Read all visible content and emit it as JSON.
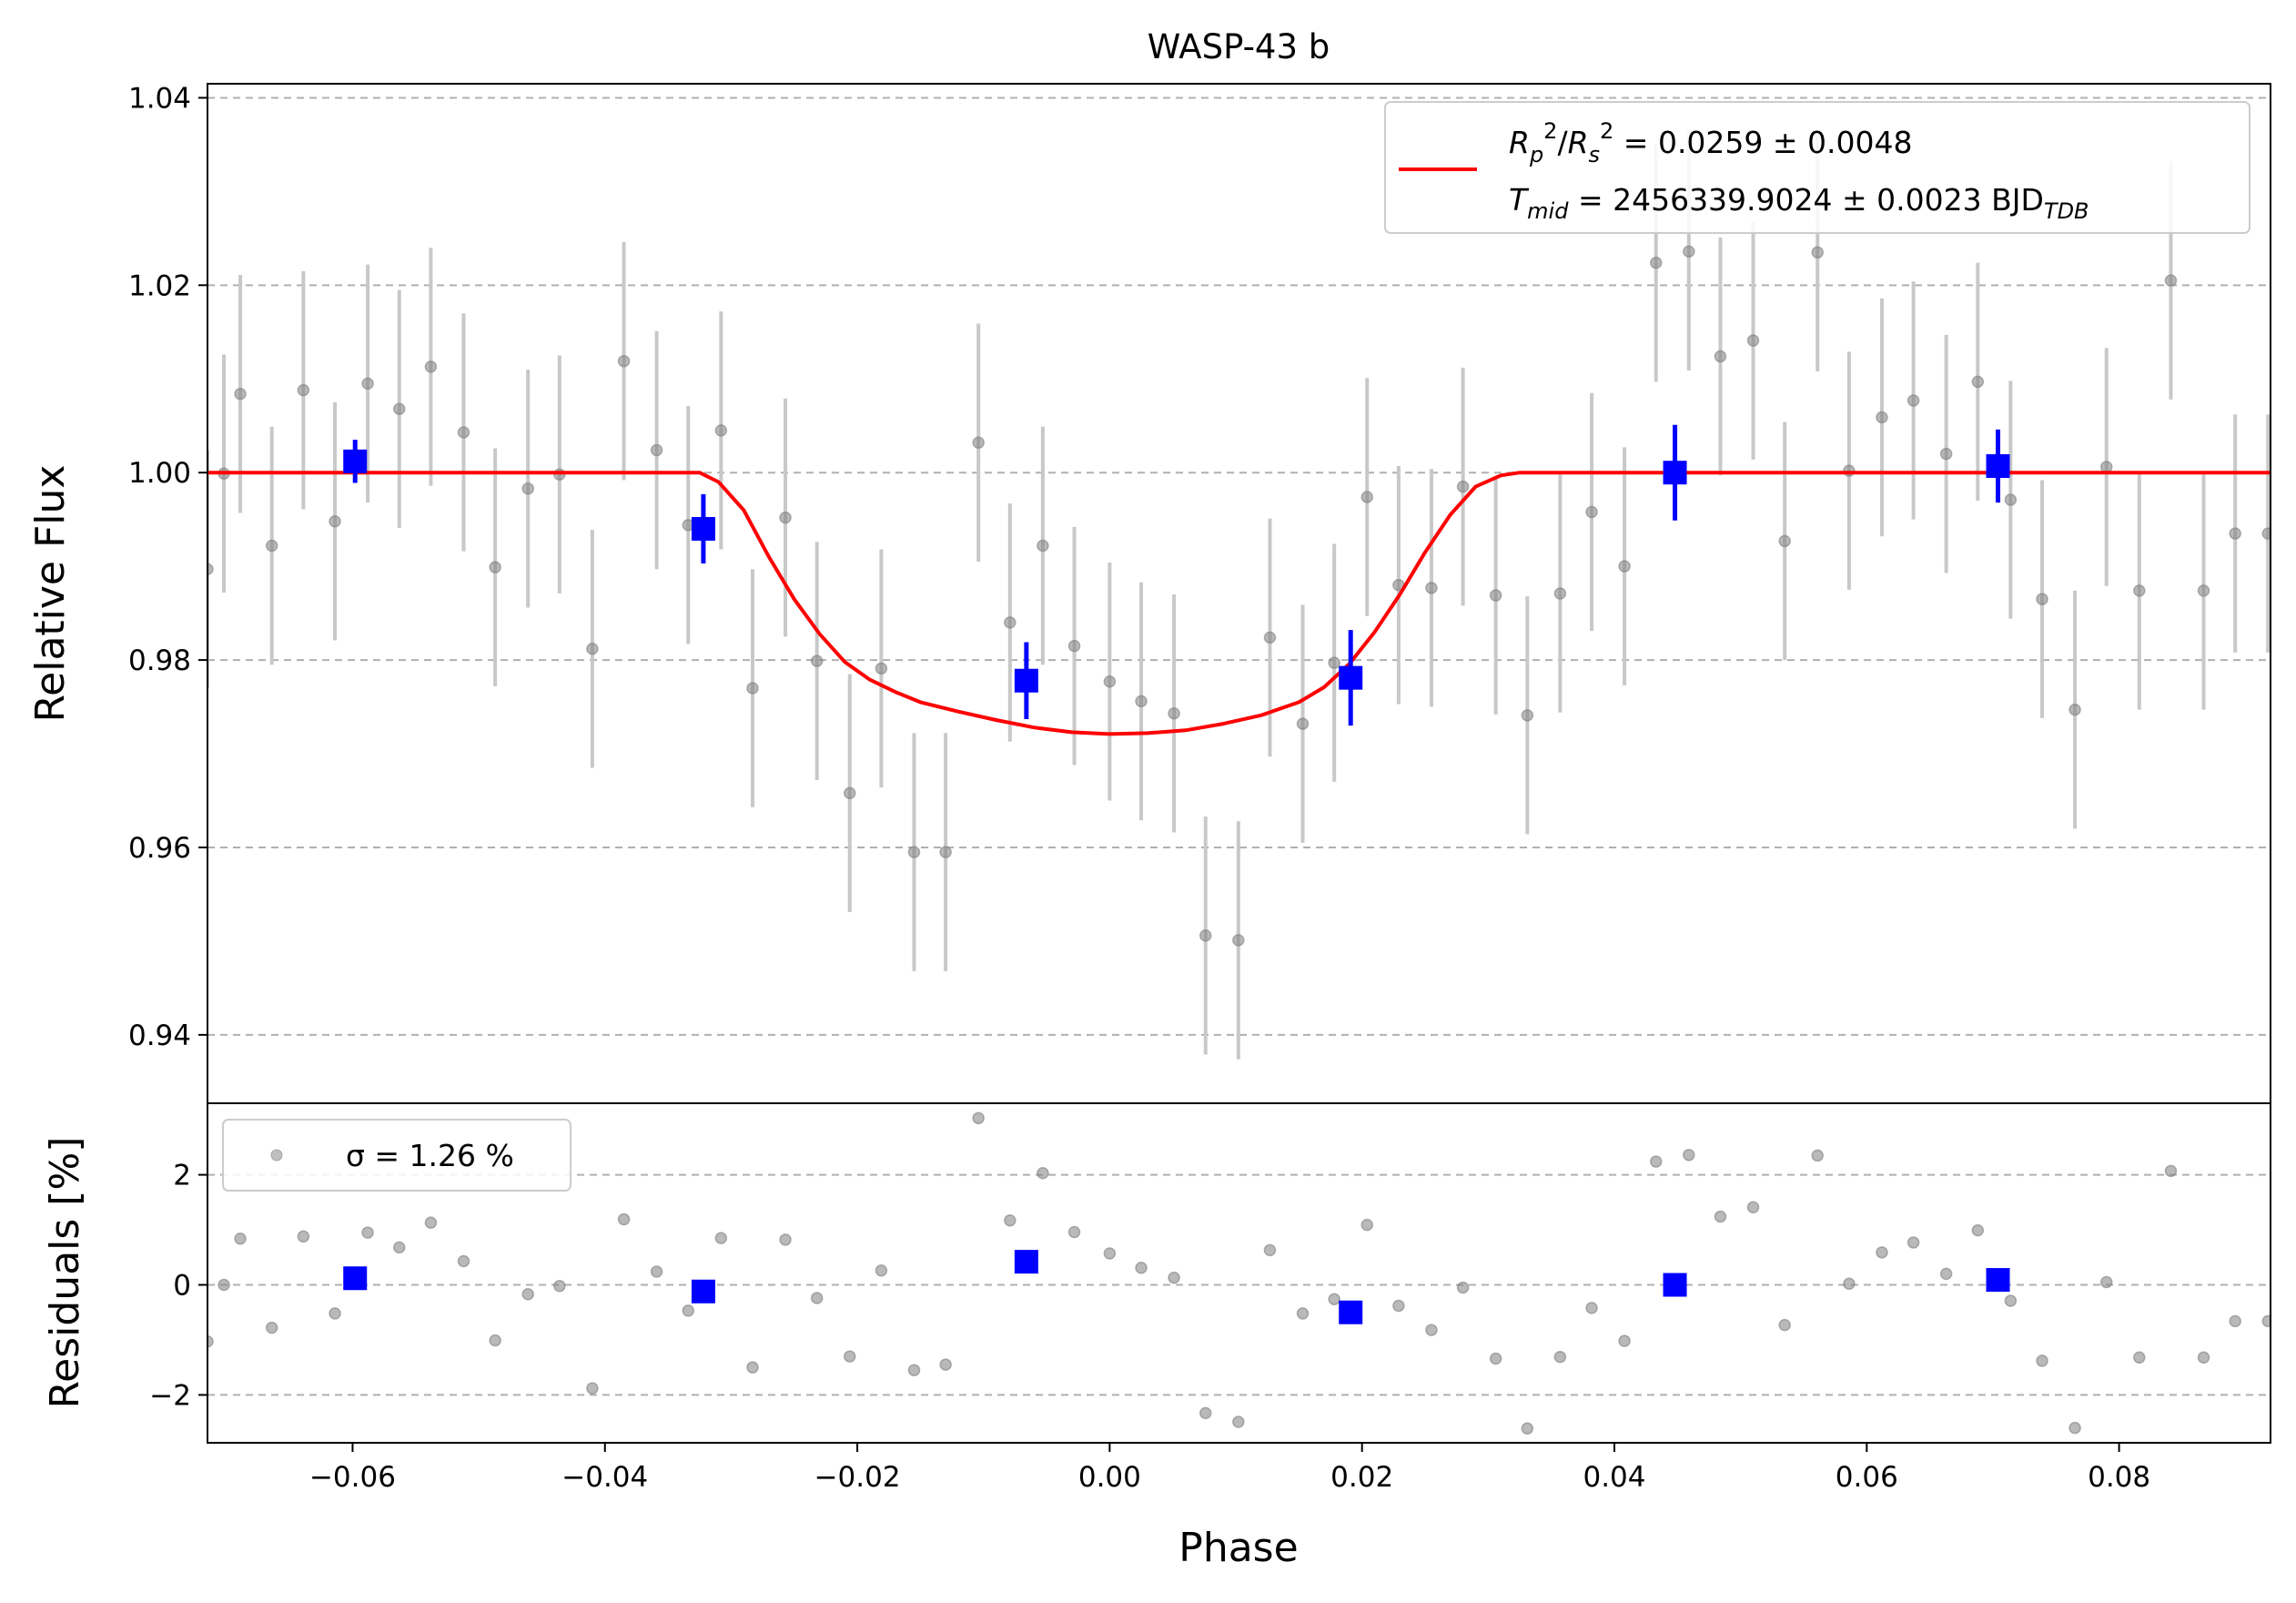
{
  "chart_data": [
    {
      "type": "scatter",
      "title": "WASP-43 b",
      "xlabel": "Phase",
      "ylabel": "Relative Flux",
      "xlim": [
        -0.0715,
        0.092
      ],
      "ylim": [
        0.9327,
        1.0415
      ],
      "yticks": [
        "0.94",
        "0.96",
        "0.98",
        "1.00",
        "1.02",
        "1.04"
      ],
      "ytick_values": [
        0.94,
        0.96,
        0.98,
        1.0,
        1.02,
        1.04
      ],
      "grid": "y-dashed",
      "legend": {
        "placement": "top-right",
        "model_line1_prefix": "R",
        "model_line1": "R_p^2/R_s^2 = 0.0259 ± 0.0048",
        "model_line2": "T_mid = 2456339.9024 ± 0.0023 BJD_TDB"
      },
      "colors": {
        "raw": "#808080",
        "errorbar": "#c8c8c8",
        "binned": "#0000ff",
        "model": "#ff0000"
      },
      "raw_points": {
        "x": [
          -0.0715,
          -0.0702,
          -0.0689,
          -0.0664,
          -0.0639,
          -0.0614,
          -0.0588,
          -0.0563,
          -0.0538,
          -0.0512,
          -0.0487,
          -0.0461,
          -0.0436,
          -0.041,
          -0.0385,
          -0.0359,
          -0.0334,
          -0.0308,
          -0.0283,
          -0.0257,
          -0.0232,
          -0.0206,
          -0.0181,
          -0.0155,
          -0.013,
          -0.0104,
          -0.0079,
          -0.0053,
          -0.0028,
          0.0,
          0.0025,
          0.0051,
          0.0076,
          0.0102,
          0.0127,
          0.0153,
          0.0178,
          0.0204,
          0.0229,
          0.0255,
          0.028,
          0.0306,
          0.0331,
          0.0357,
          0.0382,
          0.0408,
          0.0433,
          0.0459,
          0.0484,
          0.051,
          0.0535,
          0.0561,
          0.0586,
          0.0612,
          0.0637,
          0.0663,
          0.0688,
          0.0714,
          0.0739,
          0.0765,
          0.079,
          0.0816,
          0.0841,
          0.0867,
          0.0892,
          0.0918
        ],
        "y": [
          0.9897,
          0.9999,
          1.0084,
          0.9922,
          1.0088,
          0.9948,
          1.0095,
          1.0068,
          1.0113,
          1.0043,
          0.9899,
          0.9983,
          0.9998,
          0.9812,
          1.0119,
          1.0024,
          0.9944,
          1.0045,
          0.977,
          0.9952,
          0.9799,
          0.9658,
          0.9791,
          0.9595,
          0.9595,
          1.0032,
          0.984,
          0.9922,
          0.9815,
          0.9777,
          0.9756,
          0.9743,
          0.9506,
          0.9501,
          0.9824,
          0.9732,
          0.9797,
          0.9974,
          0.988,
          0.9877,
          0.9985,
          0.9869,
          0.9741,
          0.9871,
          0.9958,
          0.99,
          1.0224,
          1.0236,
          1.0124,
          1.0141,
          0.9927,
          1.0235,
          1.0002,
          1.0059,
          1.0077,
          1.002,
          1.0097,
          0.9971,
          0.9865,
          0.9747,
          1.0006,
          0.9874,
          1.0205,
          0.9874,
          0.9935,
          0.9935
        ],
        "yerr": 0.0127,
        "residuals_percent": [
          -1.03,
          0.0,
          0.84,
          -0.78,
          0.88,
          -0.52,
          0.95,
          0.68,
          1.13,
          0.43,
          -1.01,
          -0.17,
          -0.02,
          -1.88,
          1.19,
          0.24,
          -0.47,
          0.85,
          -1.5,
          0.82,
          -0.24,
          -1.3,
          0.26,
          -1.55,
          -1.45,
          3.03,
          1.17,
          2.03,
          0.96,
          0.57,
          0.31,
          0.13,
          -2.33,
          -2.49,
          0.63,
          -0.52,
          -0.26,
          1.09,
          -0.38,
          -0.82,
          -0.05,
          -1.34,
          -2.61,
          -1.31,
          -0.42,
          -1.02,
          2.24,
          2.36,
          1.24,
          1.41,
          -0.73,
          2.35,
          0.02,
          0.59,
          0.77,
          0.2,
          0.99,
          -0.29,
          -1.38,
          -2.6,
          0.05,
          -1.32,
          2.07,
          -1.32,
          -0.66,
          -0.66
        ]
      },
      "binned_points": {
        "x": [
          -0.0598,
          -0.0322,
          -0.0066,
          0.0191,
          0.0448,
          0.0704
        ],
        "y": [
          1.0012,
          0.994,
          0.9778,
          0.9781,
          1.0,
          1.0007
        ],
        "yerr": [
          0.0023,
          0.0037,
          0.0041,
          0.0051,
          0.0051,
          0.0039
        ],
        "residuals_percent": [
          0.12,
          -0.12,
          0.42,
          -0.5,
          0.0,
          0.09
        ]
      },
      "model_curve": {
        "x": [
          -0.0715,
          -0.0325,
          -0.031,
          -0.029,
          -0.027,
          -0.025,
          -0.023,
          -0.021,
          -0.019,
          -0.017,
          -0.015,
          -0.012,
          -0.009,
          -0.006,
          -0.003,
          0.0,
          0.003,
          0.006,
          0.009,
          0.012,
          0.015,
          0.017,
          0.019,
          0.021,
          0.023,
          0.025,
          0.027,
          0.029,
          0.031,
          0.0325,
          0.092
        ],
        "y": [
          1.0,
          1.0,
          0.999,
          0.996,
          0.991,
          0.9865,
          0.9828,
          0.9798,
          0.9779,
          0.9766,
          0.9755,
          0.9745,
          0.9736,
          0.9728,
          0.9723,
          0.9721,
          0.9722,
          0.9725,
          0.9732,
          0.9741,
          0.9755,
          0.9771,
          0.9796,
          0.983,
          0.987,
          0.9915,
          0.9955,
          0.9985,
          0.9997,
          1.0,
          1.0
        ]
      }
    },
    {
      "type": "scatter",
      "xlabel": "Phase",
      "ylabel": "Residuals [%]",
      "xlim": [
        -0.0715,
        0.092
      ],
      "ylim": [
        -2.87,
        3.3
      ],
      "xticks": [
        "−0.06",
        "−0.04",
        "−0.02",
        "0.00",
        "0.02",
        "0.04",
        "0.06",
        "0.08"
      ],
      "xtick_values": [
        -0.06,
        -0.04,
        -0.02,
        0.0,
        0.02,
        0.04,
        0.06,
        0.08
      ],
      "yticks": [
        "−2",
        "0",
        "2"
      ],
      "ytick_values": [
        -2,
        0,
        2
      ],
      "grid": "y-dashed",
      "legend": {
        "placement": "top-left",
        "sigma_label": "σ = 1.26 %"
      }
    }
  ]
}
